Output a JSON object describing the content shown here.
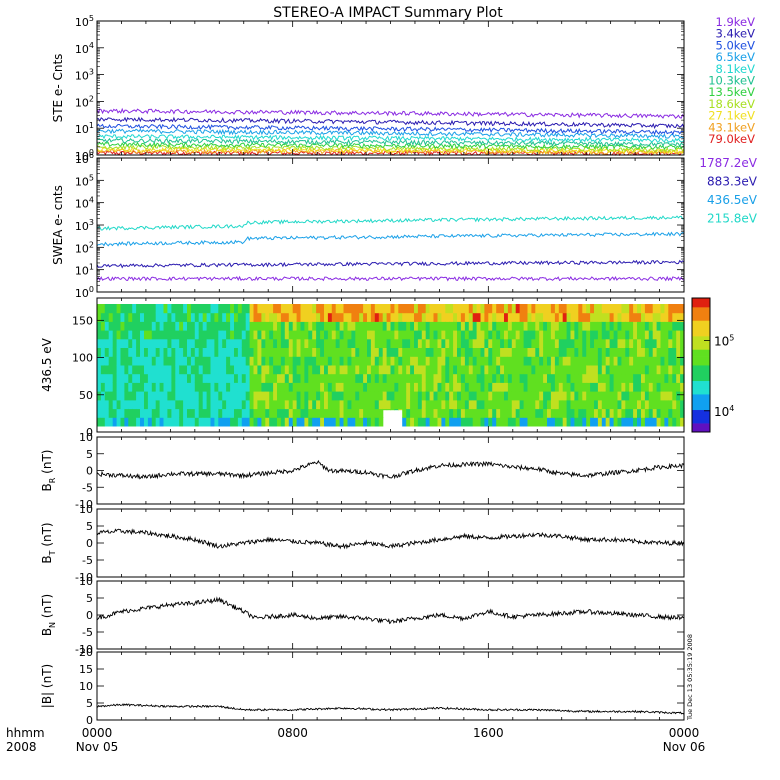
{
  "title": "STEREO-A IMPACT Summary Plot",
  "timestamp": "Tue Dec 13 05:35:19 2008",
  "time_axis": {
    "corner_labels": [
      "hhmm",
      "2008"
    ],
    "ticks": [
      {
        "hour": 0,
        "label": "0000",
        "date": "Nov 05"
      },
      {
        "hour": 8,
        "label": "0800",
        "date": ""
      },
      {
        "hour": 16,
        "label": "1600",
        "date": ""
      },
      {
        "hour": 24,
        "label": "0000",
        "date": "Nov 06"
      }
    ],
    "range_hours": [
      0,
      24
    ]
  },
  "chart_data": [
    {
      "type": "line",
      "ylabel": "STE e- Cnts",
      "log": true,
      "ylim": [
        1,
        100000
      ],
      "ytick_exponents": [
        0,
        1,
        2,
        3,
        4,
        5
      ],
      "series": [
        {
          "name": "1.9keV",
          "color": "#8a2be2",
          "level": 45,
          "end": 28
        },
        {
          "name": "3.4keV",
          "color": "#2a1bb0",
          "level": 22,
          "end": 12
        },
        {
          "name": "5.0keV",
          "color": "#1e4fe0",
          "level": 12,
          "end": 7
        },
        {
          "name": "6.5keV",
          "color": "#1aa0e8",
          "level": 8,
          "end": 5
        },
        {
          "name": "8.1keV",
          "color": "#20d8d0",
          "level": 5,
          "end": 3.5
        },
        {
          "name": "10.3keV",
          "color": "#20c090",
          "level": 3.5,
          "end": 2.5
        },
        {
          "name": "13.5keV",
          "color": "#30d040",
          "level": 2.5,
          "end": 2
        },
        {
          "name": "18.6keV",
          "color": "#a8e020",
          "level": 2,
          "end": 1.6
        },
        {
          "name": "27.1keV",
          "color": "#f0e020",
          "level": 1.6,
          "end": 1.4
        },
        {
          "name": "43.1keV",
          "color": "#f0a020",
          "level": 1.4,
          "end": 1.3
        },
        {
          "name": "79.0keV",
          "color": "#e02020",
          "level": 1.2,
          "end": 1.15
        }
      ]
    },
    {
      "type": "line",
      "ylabel": "SWEA e- cnts",
      "log": true,
      "ylim": [
        1,
        1000000
      ],
      "ytick_exponents": [
        0,
        1,
        2,
        3,
        4,
        5,
        6
      ],
      "series": [
        {
          "name": "1787.2eV",
          "color": "#8a2be2",
          "level": 4,
          "end": 4
        },
        {
          "name": "883.3eV",
          "color": "#2a1bb0",
          "level": 15,
          "end": 22
        },
        {
          "name": "436.5eV",
          "color": "#1aa0e8",
          "level": 200,
          "end": 400
        },
        {
          "name": "215.8eV",
          "color": "#20d8c8",
          "level": 1000,
          "end": 2200
        }
      ]
    },
    {
      "type": "heatmap",
      "ylabel": "436.5 eV",
      "ylim": [
        0,
        180
      ],
      "yticks": [
        0,
        50,
        100,
        150
      ],
      "colorbar": {
        "log": true,
        "range": [
          5000,
          400000
        ],
        "ticks": [
          {
            "exp": 4,
            "value": 10000
          },
          {
            "exp": 5,
            "value": 100000
          }
        ]
      }
    },
    {
      "type": "line",
      "ylabel_main": "B",
      "ylabel_sub": "R",
      "ylabel_unit": "(nT)",
      "ylim": [
        -10,
        10
      ],
      "yticks": [
        -10,
        -5,
        0,
        5,
        10
      ],
      "series": [
        {
          "name": "",
          "color": "#000000",
          "key": [
            [
              0,
              -1
            ],
            [
              2,
              -2
            ],
            [
              3,
              -1
            ],
            [
              5,
              -1
            ],
            [
              6,
              -1.5
            ],
            [
              8,
              0
            ],
            [
              9,
              2.5
            ],
            [
              9.5,
              0
            ],
            [
              11,
              -0.5
            ],
            [
              12,
              -2
            ],
            [
              13,
              0
            ],
            [
              14,
              1.5
            ],
            [
              16,
              2
            ],
            [
              17,
              1
            ],
            [
              18,
              0.5
            ],
            [
              19,
              -1
            ],
            [
              20,
              -1.5
            ],
            [
              22,
              0
            ],
            [
              23,
              1
            ],
            [
              24,
              1.5
            ]
          ]
        }
      ]
    },
    {
      "type": "line",
      "ylabel_main": "B",
      "ylabel_sub": "T",
      "ylabel_unit": "(nT)",
      "ylim": [
        -10,
        10
      ],
      "yticks": [
        -10,
        -5,
        0,
        5,
        10
      ],
      "series": [
        {
          "name": "",
          "color": "#000000",
          "key": [
            [
              0,
              3
            ],
            [
              1,
              3.5
            ],
            [
              2,
              3
            ],
            [
              3,
              2
            ],
            [
              4,
              1
            ],
            [
              5,
              -1
            ],
            [
              6,
              0
            ],
            [
              7,
              1
            ],
            [
              8,
              0.5
            ],
            [
              9,
              0
            ],
            [
              10,
              -1
            ],
            [
              11,
              0
            ],
            [
              12,
              -1
            ],
            [
              13,
              0
            ],
            [
              14,
              1
            ],
            [
              15,
              2
            ],
            [
              16,
              1.5
            ],
            [
              17,
              2
            ],
            [
              18,
              2.5
            ],
            [
              19,
              2
            ],
            [
              20,
              1
            ],
            [
              21,
              1
            ],
            [
              22,
              0.5
            ],
            [
              23,
              0
            ],
            [
              24,
              0
            ]
          ]
        }
      ]
    },
    {
      "type": "line",
      "ylabel_main": "B",
      "ylabel_sub": "N",
      "ylabel_unit": "(nT)",
      "ylim": [
        -10,
        10
      ],
      "yticks": [
        -10,
        -5,
        0,
        5,
        10
      ],
      "series": [
        {
          "name": "",
          "color": "#000000",
          "key": [
            [
              0,
              -1
            ],
            [
              1,
              1
            ],
            [
              2,
              2
            ],
            [
              3,
              3
            ],
            [
              4,
              3.5
            ],
            [
              5,
              4.5
            ],
            [
              6,
              1
            ],
            [
              6.5,
              -1
            ],
            [
              7,
              -0.5
            ],
            [
              8,
              0
            ],
            [
              9,
              -1
            ],
            [
              10,
              -0.5
            ],
            [
              11,
              -1
            ],
            [
              12,
              -2
            ],
            [
              13,
              -1
            ],
            [
              14,
              0
            ],
            [
              15,
              -1
            ],
            [
              16,
              1
            ],
            [
              17,
              -0.5
            ],
            [
              18,
              0
            ],
            [
              19,
              0.5
            ],
            [
              20,
              1
            ],
            [
              21,
              0.5
            ],
            [
              22,
              0
            ],
            [
              23,
              -0.5
            ],
            [
              24,
              -1
            ]
          ]
        }
      ]
    },
    {
      "type": "line",
      "ylabel_main": "|B|",
      "ylabel_sub": "",
      "ylabel_unit": "(nT)",
      "ylim": [
        0,
        20
      ],
      "yticks": [
        0,
        5,
        10,
        15,
        20
      ],
      "series": [
        {
          "name": "",
          "color": "#000000",
          "key": [
            [
              0,
              4
            ],
            [
              1,
              4.5
            ],
            [
              3,
              4
            ],
            [
              5,
              4
            ],
            [
              6,
              3
            ],
            [
              8,
              3
            ],
            [
              10,
              3.5
            ],
            [
              12,
              3
            ],
            [
              14,
              3.5
            ],
            [
              16,
              3
            ],
            [
              18,
              3
            ],
            [
              20,
              2.5
            ],
            [
              22,
              2.5
            ],
            [
              24,
              2
            ]
          ]
        }
      ]
    }
  ]
}
